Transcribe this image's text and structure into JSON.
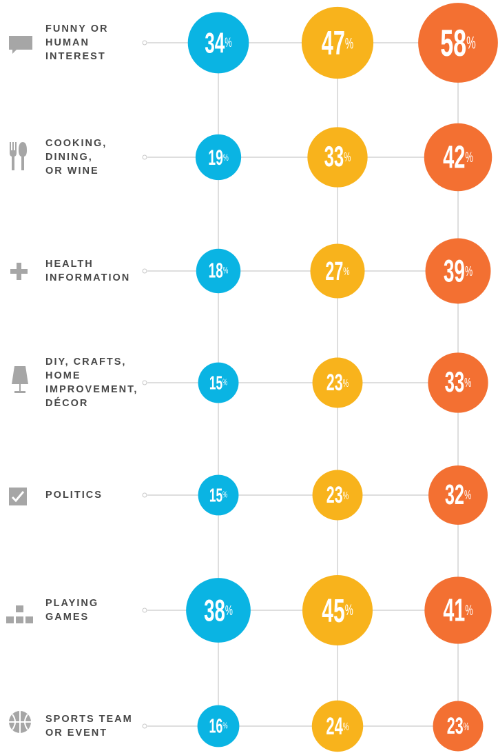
{
  "chart_data": {
    "type": "bubble",
    "categories": [
      "FUNNY OR\nHUMAN\nINTEREST",
      "COOKING,\nDINING,\nOR WINE",
      "HEALTH\nINFORMATION",
      "DIY, CRAFTS,\nHOME\nIMPROVEMENT,\nDÉCOR",
      "POLITICS",
      "PLAYING\nGAMES",
      "SPORTS TEAM\nOR EVENT"
    ],
    "series": [
      {
        "color": "#0ab4e3",
        "values": [
          34,
          19,
          18,
          15,
          15,
          38,
          16
        ],
        "value_labels": [
          "34%",
          "19%",
          "18%",
          "15%",
          "15%",
          "38%",
          "16%"
        ]
      },
      {
        "color": "#f8b31c",
        "values": [
          47,
          33,
          27,
          23,
          23,
          45,
          24
        ],
        "value_labels": [
          "47%",
          "33%",
          "27%",
          "23%",
          "23%",
          "45%",
          "24%"
        ]
      },
      {
        "color": "#f37032",
        "values": [
          58,
          42,
          39,
          33,
          32,
          41,
          23
        ],
        "value_labels": [
          "58%",
          "42%",
          "39%",
          "33%",
          "32%",
          "41%",
          "23%"
        ]
      }
    ]
  }
}
